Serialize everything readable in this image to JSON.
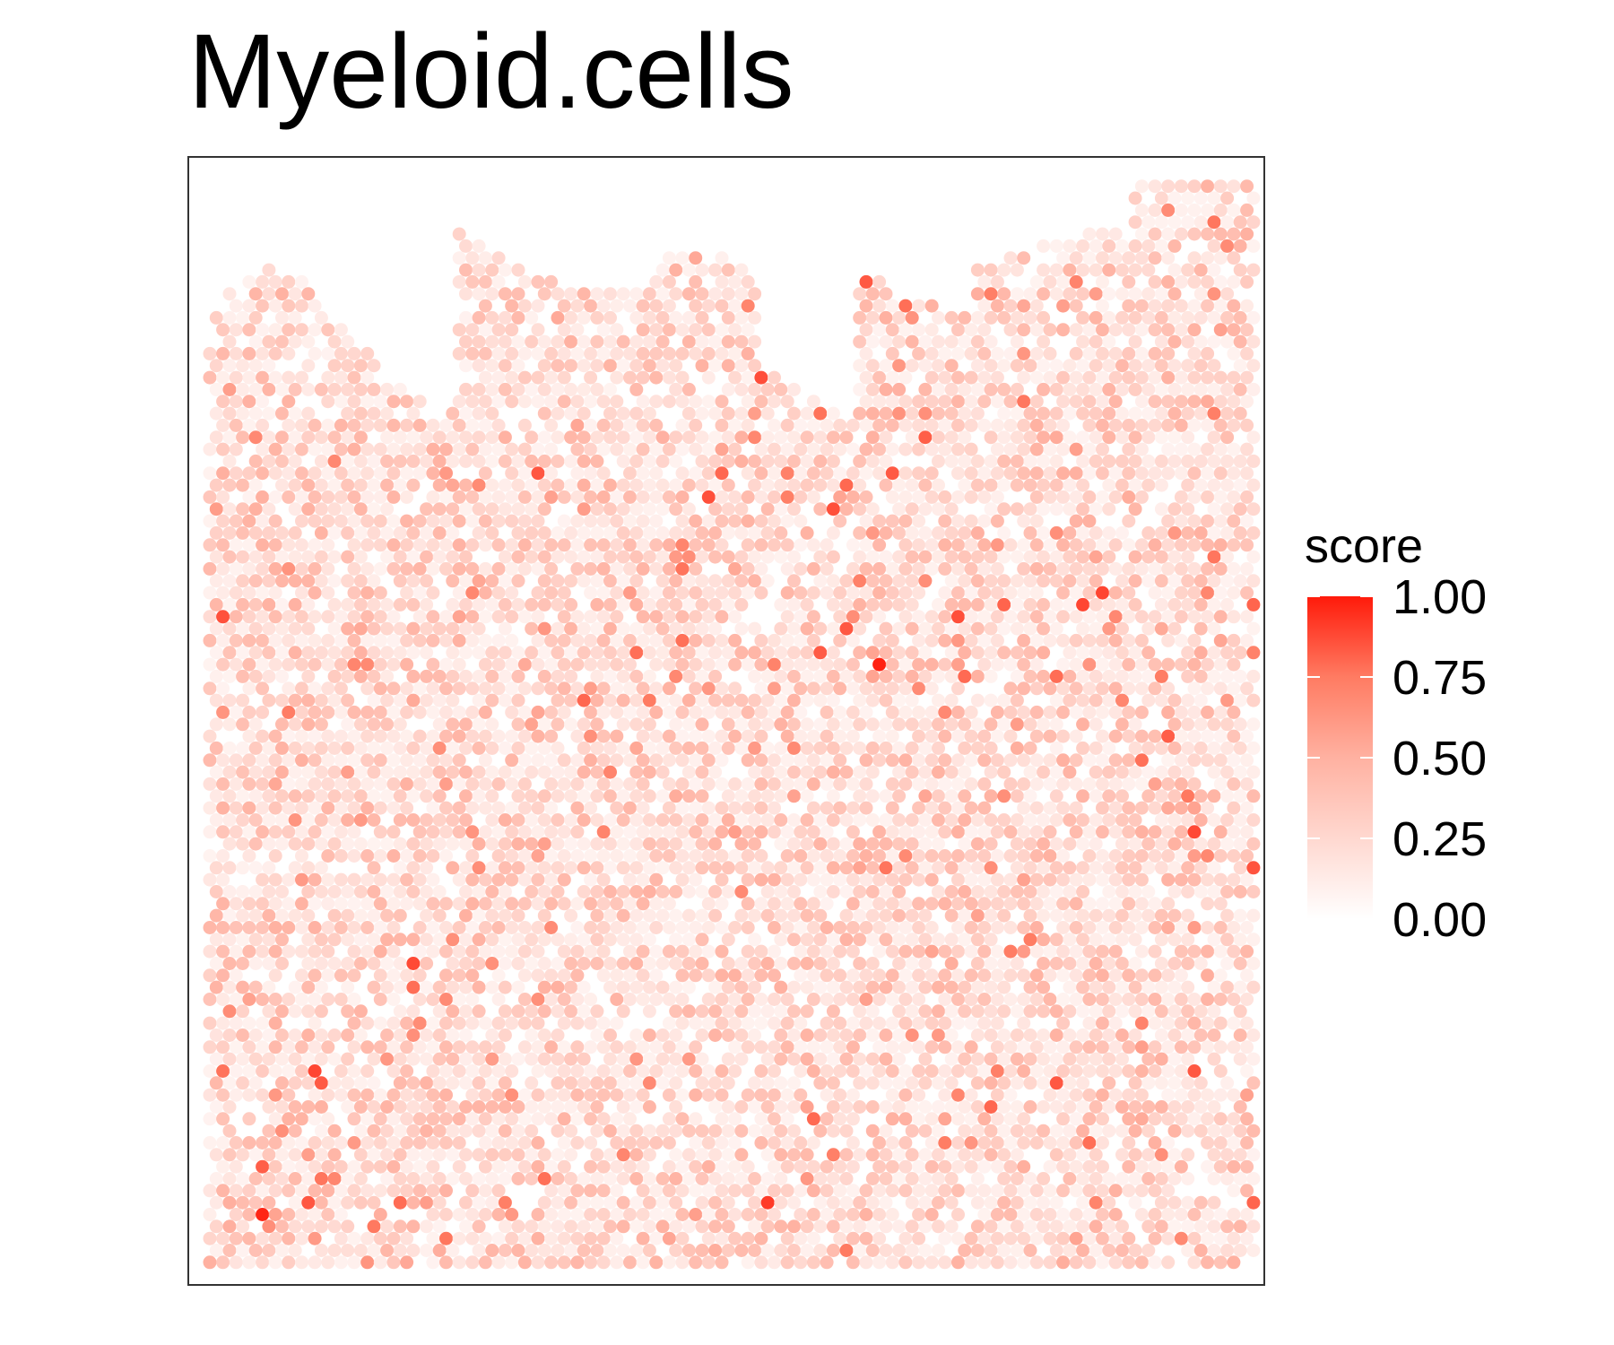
{
  "chart_data": {
    "type": "scatter",
    "title": "Myeloid.cells",
    "xlabel": "",
    "ylabel": "",
    "grid": false,
    "legend": {
      "position": "right",
      "title": "score",
      "ticks": [
        "0.00",
        "0.25",
        "0.50",
        "0.75",
        "1.00"
      ],
      "tick_values": [
        0,
        0.25,
        0.5,
        0.75,
        1.0
      ],
      "colors": {
        "low": "#ffffff",
        "high": "#ff1a0a"
      }
    },
    "score_range": [
      0,
      1
    ],
    "hotspots": [
      {
        "x": 0.07,
        "y": 0.06,
        "score": 1.0
      },
      {
        "x": 0.64,
        "y": 0.55,
        "score": 1.0
      },
      {
        "x": 0.6,
        "y": 0.69,
        "score": 0.88
      },
      {
        "x": 0.46,
        "y": 0.65,
        "score": 0.83
      },
      {
        "x": 0.58,
        "y": 0.15,
        "score": 0.83
      },
      {
        "x": 0.16,
        "y": 0.55,
        "score": 0.82
      },
      {
        "x": 0.6,
        "y": 0.12,
        "score": 0.8
      },
      {
        "x": 0.93,
        "y": 0.43,
        "score": 0.8
      }
    ]
  },
  "colors": {
    "frame": "#333333",
    "background": "#ffffff"
  }
}
